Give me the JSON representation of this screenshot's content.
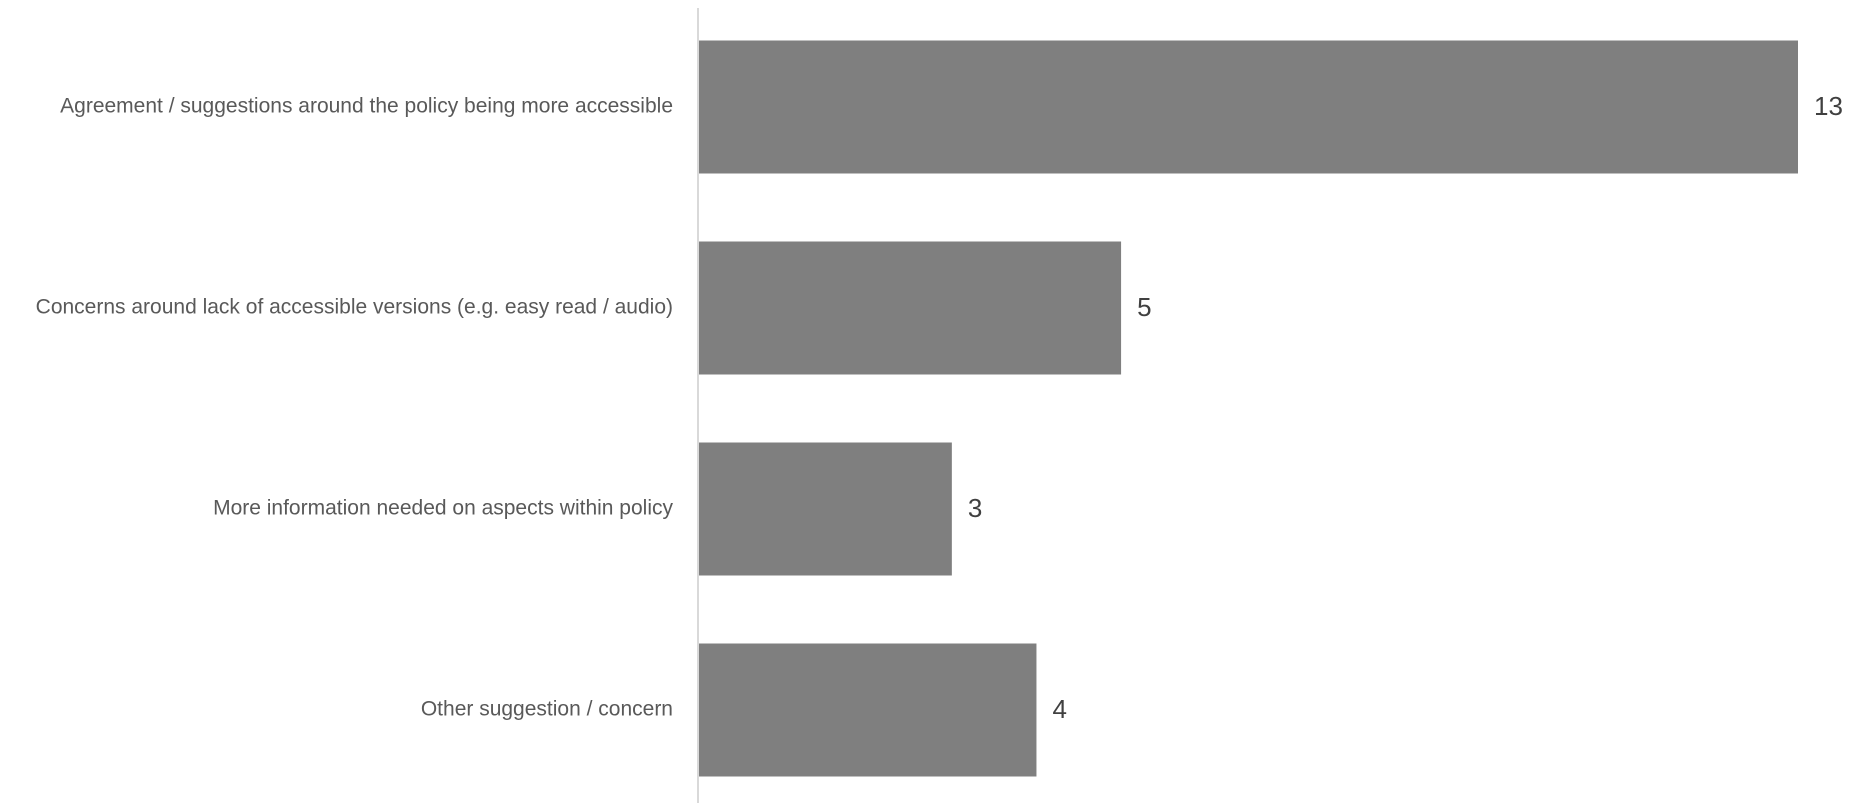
{
  "chart_data": {
    "type": "bar",
    "orientation": "horizontal",
    "categories": [
      "Agreement / suggestions around the policy being more accessible",
      "Concerns around lack of accessible versions (e.g. easy read / audio)",
      "More information needed on aspects within policy",
      "Other suggestion / concern"
    ],
    "values": [
      13,
      5,
      3,
      4
    ],
    "title": "",
    "xlabel": "",
    "ylabel": "",
    "xlim": [
      0,
      13
    ],
    "grid": false,
    "legend": "none",
    "data_labels": true,
    "colors": {
      "bar": "#7f7f7f",
      "axis": "#d9d9d9",
      "category_text": "#595959",
      "value_text": "#404040"
    }
  }
}
